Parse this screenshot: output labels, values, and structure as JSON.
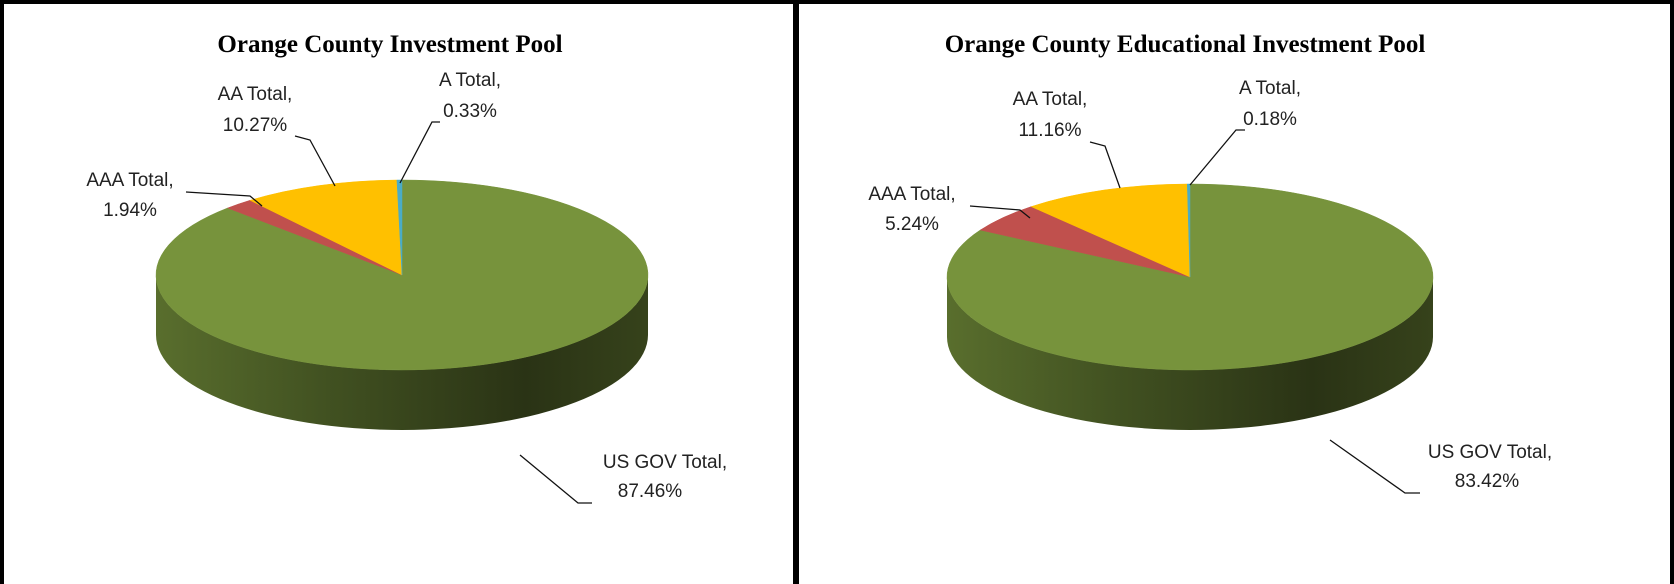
{
  "chart_data": [
    {
      "type": "pie3d",
      "title": "Orange County Investment Pool",
      "categories": [
        "US GOV Total,",
        "AAA Total,",
        "AA Total,",
        "A Total,"
      ],
      "values": [
        87.46,
        1.94,
        10.27,
        0.33
      ],
      "value_labels": [
        "87.46%",
        "1.94%",
        "10.27%",
        "0.33%"
      ],
      "colors": [
        "#77933c",
        "#c0504d",
        "#ffc000",
        "#4bacc6"
      ]
    },
    {
      "type": "pie3d",
      "title": "Orange County Educational Investment Pool",
      "categories": [
        "US GOV Total,",
        "AAA Total,",
        "AA Total,",
        "A Total,"
      ],
      "values": [
        83.42,
        5.24,
        11.16,
        0.18
      ],
      "value_labels": [
        "83.42%",
        "5.24%",
        "11.16%",
        "0.18%"
      ],
      "colors": [
        "#77933c",
        "#c0504d",
        "#ffc000",
        "#4bacc6"
      ]
    }
  ]
}
